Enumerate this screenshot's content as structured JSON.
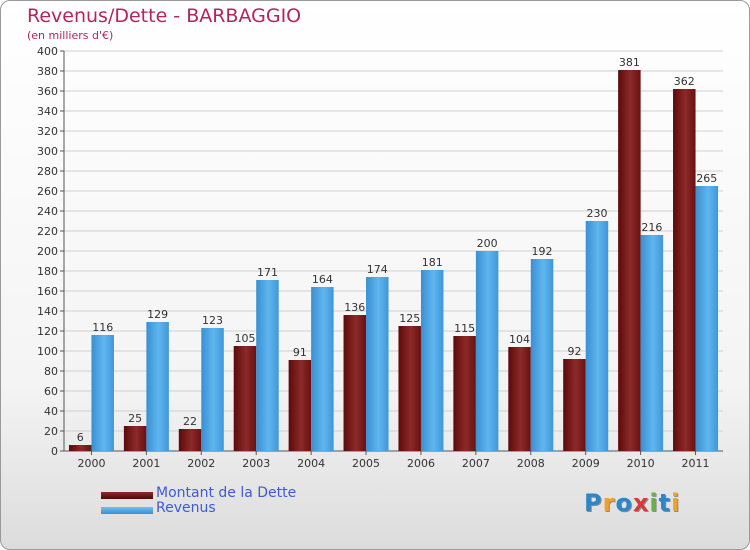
{
  "chart_data": {
    "type": "bar",
    "title": "Revenus/Dette - BARBAGGIO",
    "subtitle": "(en milliers d'€)",
    "categories": [
      "2000",
      "2001",
      "2002",
      "2003",
      "2004",
      "2005",
      "2006",
      "2007",
      "2008",
      "2009",
      "2010",
      "2011"
    ],
    "series": [
      {
        "name": "Montant de la Dette",
        "color": "#7a1414",
        "values": [
          6,
          25,
          22,
          105,
          91,
          136,
          125,
          115,
          104,
          92,
          381,
          362
        ]
      },
      {
        "name": "Revenus",
        "color": "#4ea7e6",
        "values": [
          116,
          129,
          123,
          171,
          164,
          174,
          181,
          200,
          192,
          230,
          216,
          265
        ]
      }
    ],
    "ylim": [
      0,
      400
    ],
    "yticks": [
      0,
      20,
      40,
      60,
      80,
      100,
      120,
      140,
      160,
      180,
      200,
      220,
      240,
      260,
      280,
      300,
      320,
      340,
      360,
      380,
      400
    ],
    "grid": true,
    "legend_position": "bottom-left"
  },
  "logo": {
    "text": "Proxiti",
    "letters": [
      {
        "ch": "P",
        "color": "#2e86c9"
      },
      {
        "ch": "r",
        "color": "#f0a12b"
      },
      {
        "ch": "o",
        "color": "#2e86c9"
      },
      {
        "ch": "x",
        "color": "#d83a3a"
      },
      {
        "ch": "i",
        "color": "#6ab04c"
      },
      {
        "ch": "t",
        "color": "#2e86c9"
      },
      {
        "ch": "i",
        "color": "#f0a12b"
      }
    ]
  }
}
